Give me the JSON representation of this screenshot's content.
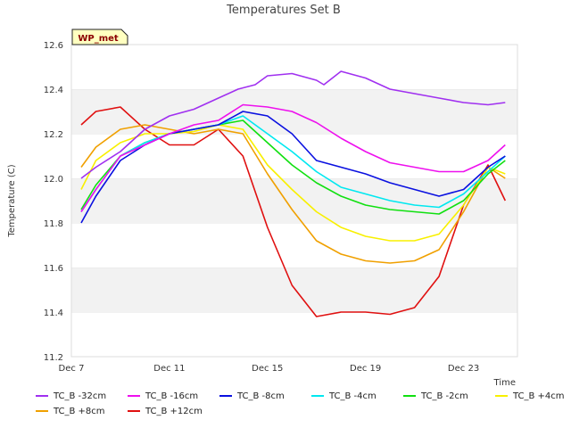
{
  "chart_data": {
    "type": "line",
    "title": "Temperatures Set B",
    "xlabel": "Time",
    "ylabel": "Temperature (C)",
    "badge": "WP_met",
    "x_ticks": [
      "Dec 7",
      "Dec 11",
      "Dec 15",
      "Dec 19",
      "Dec 23"
    ],
    "y_ticks": [
      "11.2",
      "11.4",
      "11.6",
      "11.8",
      "12.0",
      "12.2",
      "12.4",
      "12.6"
    ],
    "ylim": [
      11.2,
      12.6
    ],
    "xlim_days": [
      7,
      25.2
    ],
    "grid": "horizontal bands",
    "legend_position": "bottom",
    "series": [
      {
        "name": "TC_B -32cm",
        "color": "#a030f0",
        "x": [
          "Dec 7.4",
          "Dec 8",
          "Dec 9",
          "Dec 10",
          "Dec 11",
          "Dec 12",
          "Dec 13",
          "Dec 13.8",
          "Dec 14.5",
          "Dec 15",
          "Dec 16",
          "Dec 17",
          "Dec 17.3",
          "Dec 18",
          "Dec 19",
          "Dec 20",
          "Dec 21",
          "Dec 22",
          "Dec 23",
          "Dec 24",
          "Dec 24.7"
        ],
        "values": [
          12.0,
          12.05,
          12.12,
          12.22,
          12.28,
          12.31,
          12.36,
          12.4,
          12.42,
          12.46,
          12.47,
          12.44,
          12.42,
          12.48,
          12.45,
          12.4,
          12.38,
          12.36,
          12.34,
          12.33,
          12.34
        ]
      },
      {
        "name": "TC_B -16cm",
        "color": "#ee10ee",
        "x": [
          "Dec 7.4",
          "Dec 8",
          "Dec 9",
          "Dec 10",
          "Dec 11",
          "Dec 12",
          "Dec 13",
          "Dec 14",
          "Dec 15",
          "Dec 16",
          "Dec 17",
          "Dec 18",
          "Dec 19",
          "Dec 20",
          "Dec 21",
          "Dec 22",
          "Dec 23",
          "Dec 24",
          "Dec 24.7"
        ],
        "values": [
          11.85,
          11.95,
          12.1,
          12.15,
          12.2,
          12.24,
          12.26,
          12.33,
          12.32,
          12.3,
          12.25,
          12.18,
          12.12,
          12.07,
          12.05,
          12.03,
          12.03,
          12.08,
          12.15
        ]
      },
      {
        "name": "TC_B -8cm",
        "color": "#0a10e0",
        "x": [
          "Dec 7.4",
          "Dec 8",
          "Dec 9",
          "Dec 10",
          "Dec 11",
          "Dec 12",
          "Dec 13",
          "Dec 14",
          "Dec 15",
          "Dec 16",
          "Dec 17",
          "Dec 18",
          "Dec 19",
          "Dec 20",
          "Dec 21",
          "Dec 22",
          "Dec 23",
          "Dec 24",
          "Dec 24.7"
        ],
        "values": [
          11.8,
          11.92,
          12.08,
          12.15,
          12.2,
          12.22,
          12.24,
          12.3,
          12.28,
          12.2,
          12.08,
          12.05,
          12.02,
          11.98,
          11.95,
          11.92,
          11.95,
          12.05,
          12.1
        ]
      },
      {
        "name": "TC_B -4cm",
        "color": "#00e8f0",
        "x": [
          "Dec 7.4",
          "Dec 8",
          "Dec 9",
          "Dec 10",
          "Dec 11",
          "Dec 12",
          "Dec 13",
          "Dec 14",
          "Dec 15",
          "Dec 16",
          "Dec 17",
          "Dec 18",
          "Dec 19",
          "Dec 20",
          "Dec 21",
          "Dec 22",
          "Dec 23",
          "Dec 24",
          "Dec 24.7"
        ],
        "values": [
          11.85,
          11.95,
          12.1,
          12.16,
          12.2,
          12.22,
          12.24,
          12.28,
          12.2,
          12.12,
          12.03,
          11.96,
          11.93,
          11.9,
          11.88,
          11.87,
          11.93,
          12.03,
          12.1
        ]
      },
      {
        "name": "TC_B -2cm",
        "color": "#10e010",
        "x": [
          "Dec 7.4",
          "Dec 8",
          "Dec 9",
          "Dec 10",
          "Dec 11",
          "Dec 12",
          "Dec 13",
          "Dec 14",
          "Dec 15",
          "Dec 16",
          "Dec 17",
          "Dec 18",
          "Dec 19",
          "Dec 20",
          "Dec 21",
          "Dec 22",
          "Dec 23",
          "Dec 24",
          "Dec 24.7"
        ],
        "values": [
          11.86,
          11.97,
          12.1,
          12.16,
          12.2,
          12.22,
          12.24,
          12.26,
          12.16,
          12.06,
          11.98,
          11.92,
          11.88,
          11.86,
          11.85,
          11.84,
          11.9,
          12.02,
          12.08
        ]
      },
      {
        "name": "TC_B +4cm",
        "color": "#f8f000",
        "x": [
          "Dec 7.4",
          "Dec 8",
          "Dec 9",
          "Dec 10",
          "Dec 11",
          "Dec 12",
          "Dec 13",
          "Dec 14",
          "Dec 15",
          "Dec 16",
          "Dec 17",
          "Dec 18",
          "Dec 19",
          "Dec 20",
          "Dec 21",
          "Dec 22",
          "Dec 23",
          "Dec 24",
          "Dec 24.7"
        ],
        "values": [
          11.95,
          12.08,
          12.16,
          12.2,
          12.2,
          12.21,
          12.24,
          12.22,
          12.06,
          11.95,
          11.85,
          11.78,
          11.74,
          11.72,
          11.72,
          11.75,
          11.88,
          12.05,
          12.02
        ]
      },
      {
        "name": "TC_B +8cm",
        "color": "#f0a000",
        "x": [
          "Dec 7.4",
          "Dec 8",
          "Dec 9",
          "Dec 10",
          "Dec 11",
          "Dec 12",
          "Dec 13",
          "Dec 14",
          "Dec 15",
          "Dec 16",
          "Dec 17",
          "Dec 18",
          "Dec 19",
          "Dec 20",
          "Dec 21",
          "Dec 22",
          "Dec 23",
          "Dec 24",
          "Dec 24.7"
        ],
        "values": [
          12.05,
          12.14,
          12.22,
          12.24,
          12.22,
          12.2,
          12.22,
          12.2,
          12.02,
          11.86,
          11.72,
          11.66,
          11.63,
          11.62,
          11.63,
          11.68,
          11.85,
          12.05,
          12.0
        ]
      },
      {
        "name": "TC_B +12cm",
        "color": "#e01010",
        "x": [
          "Dec 7.4",
          "Dec 8",
          "Dec 9",
          "Dec 10",
          "Dec 11",
          "Dec 12",
          "Dec 13",
          "Dec 14",
          "Dec 15",
          "Dec 16",
          "Dec 17",
          "Dec 18",
          "Dec 19",
          "Dec 20",
          "Dec 21",
          "Dec 22",
          "Dec 23",
          "Dec 24",
          "Dec 24.7"
        ],
        "values": [
          12.24,
          12.3,
          12.32,
          12.22,
          12.15,
          12.15,
          12.22,
          12.1,
          11.78,
          11.52,
          11.38,
          11.4,
          11.4,
          11.39,
          11.42,
          11.56,
          11.88,
          12.06,
          11.9
        ]
      }
    ]
  }
}
